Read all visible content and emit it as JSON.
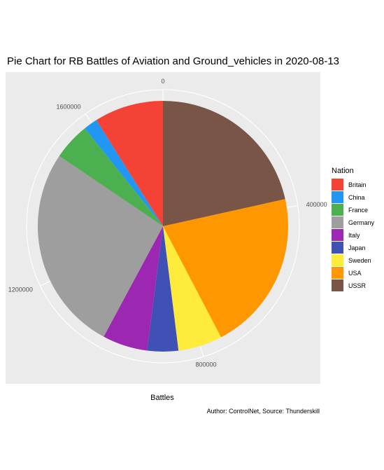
{
  "chart_data": {
    "type": "pie",
    "title": "Pie Chart for RB Battles of Aviation and Ground_vehicles in 2020-08-13",
    "xlabel": "Battles",
    "caption": "Author: ControlNet, Source: Thunderskill",
    "legend_title": "Nation",
    "legend_position": "right",
    "axis_ticks": [
      0,
      400000,
      800000,
      1200000,
      1600000
    ],
    "axis_tick_labels": [
      "0",
      "400000",
      "800000",
      "1200000",
      "1600000"
    ],
    "axis_max": 1770000,
    "slice_order": [
      "USSR",
      "USA",
      "Sweden",
      "Japan",
      "Italy",
      "Germany",
      "France",
      "China",
      "Britain"
    ],
    "series": [
      {
        "name": "Britain",
        "value": 158000,
        "color": "#F44336"
      },
      {
        "name": "China",
        "value": 32000,
        "color": "#2196F3"
      },
      {
        "name": "France",
        "value": 85000,
        "color": "#4CAF50"
      },
      {
        "name": "Germany",
        "value": 471000,
        "color": "#9E9E9E"
      },
      {
        "name": "Italy",
        "value": 103000,
        "color": "#9C27B0"
      },
      {
        "name": "Japan",
        "value": 71000,
        "color": "#3F51B5"
      },
      {
        "name": "Sweden",
        "value": 101000,
        "color": "#FFEB3B"
      },
      {
        "name": "USA",
        "value": 368000,
        "color": "#FF9800"
      },
      {
        "name": "USSR",
        "value": 381000,
        "color": "#795548"
      }
    ]
  }
}
